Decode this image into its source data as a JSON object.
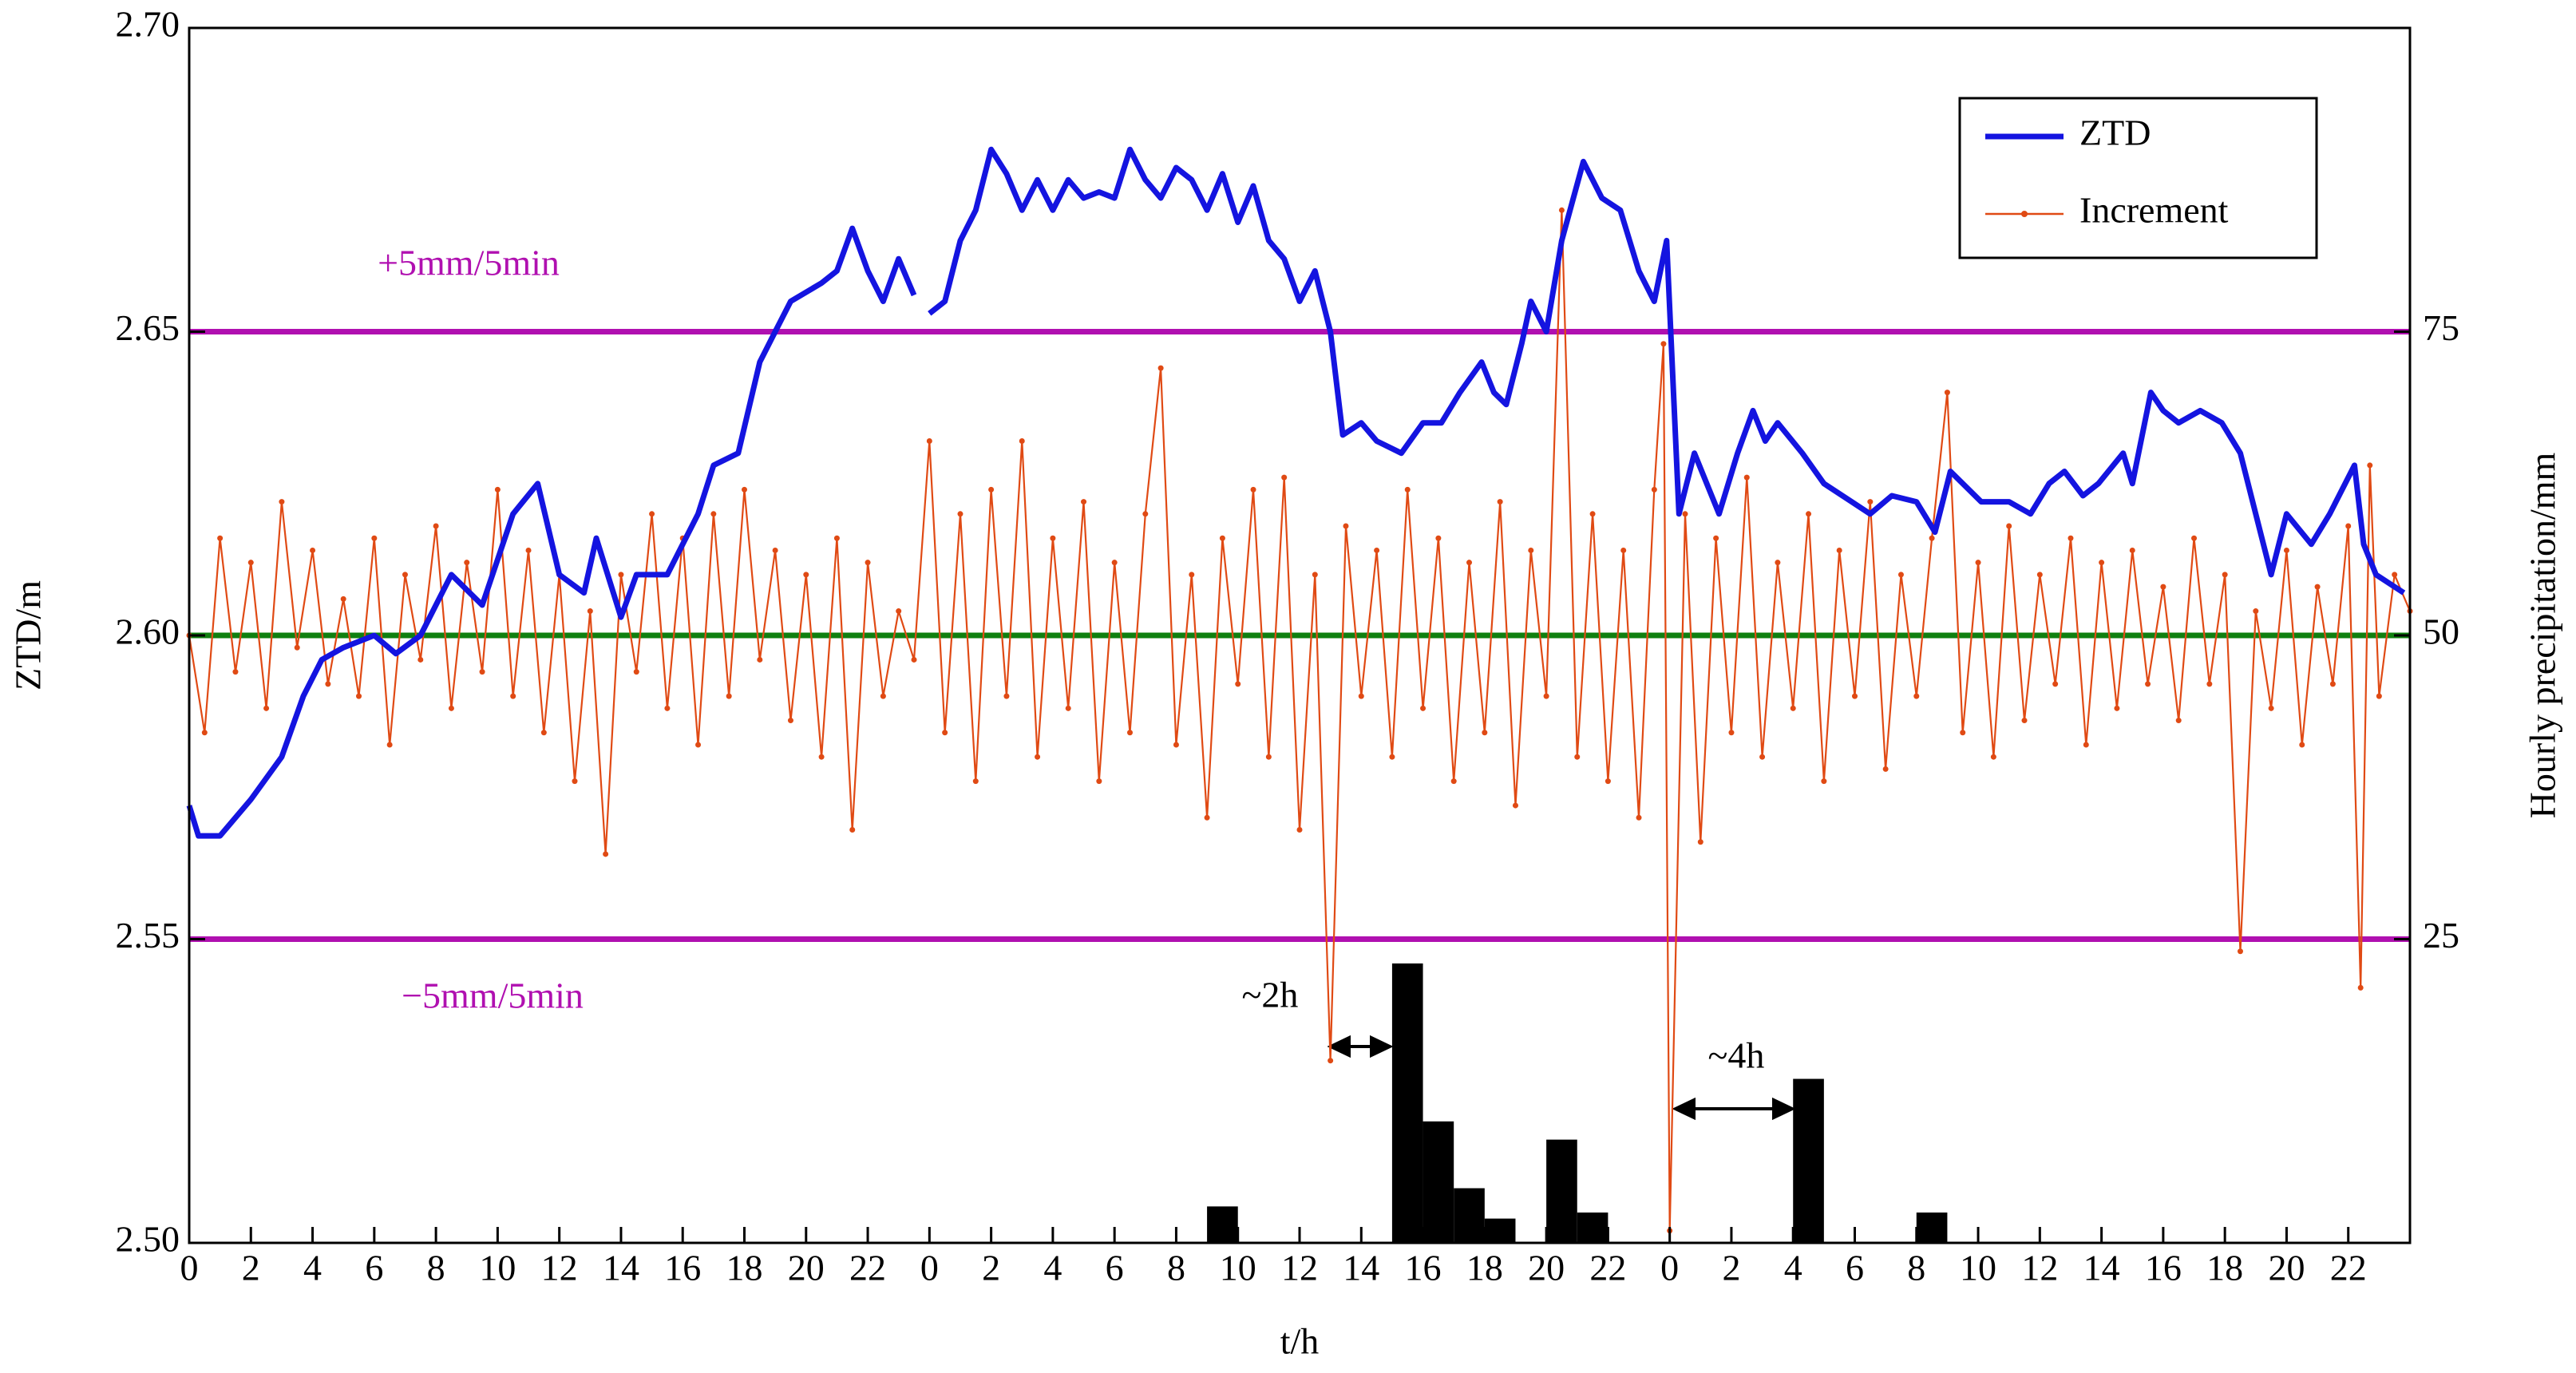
{
  "chart_data": {
    "type": "line",
    "ylabel": "ZTD/m",
    "y2label": "Hourly precipitation/mm",
    "xlabel": "t/h",
    "xlim": [
      0,
      72
    ],
    "ylim": [
      2.5,
      2.7
    ],
    "y2lim": [
      0,
      100
    ],
    "xticks": [
      0,
      2,
      4,
      6,
      8,
      10,
      12,
      14,
      16,
      18,
      20,
      22,
      {
        "value": 24,
        "label": "0"
      },
      {
        "value": 26,
        "label": "2"
      },
      {
        "value": 28,
        "label": "4"
      },
      {
        "value": 30,
        "label": "6"
      },
      {
        "value": 32,
        "label": "8"
      },
      {
        "value": 34,
        "label": "10"
      },
      {
        "value": 36,
        "label": "12"
      },
      {
        "value": 38,
        "label": "14"
      },
      {
        "value": 40,
        "label": "16"
      },
      {
        "value": 42,
        "label": "18"
      },
      {
        "value": 44,
        "label": "20"
      },
      {
        "value": 46,
        "label": "22"
      },
      {
        "value": 48,
        "label": "0"
      },
      {
        "value": 50,
        "label": "2"
      },
      {
        "value": 52,
        "label": "4"
      },
      {
        "value": 54,
        "label": "6"
      },
      {
        "value": 56,
        "label": "8"
      },
      {
        "value": 58,
        "label": "10"
      },
      {
        "value": 60,
        "label": "12"
      },
      {
        "value": 62,
        "label": "14"
      },
      {
        "value": 64,
        "label": "16"
      },
      {
        "value": 66,
        "label": "18"
      },
      {
        "value": 68,
        "label": "20"
      },
      {
        "value": 70,
        "label": "22"
      }
    ],
    "yticks": [
      {
        "value": 2.5,
        "label": "2.50"
      },
      2.55,
      {
        "value": 2.6,
        "label": "2.60"
      },
      2.65,
      {
        "value": 2.7,
        "label": "2.70"
      }
    ],
    "y2ticks": [
      25,
      50,
      75
    ],
    "legend": "upper right",
    "hlines": [
      {
        "value": 75,
        "color": "#b010b0",
        "axis": "y2"
      },
      {
        "value": 50,
        "color": "#108010",
        "axis": "y2"
      },
      {
        "value": 25,
        "color": "#b010b0",
        "axis": "y2"
      }
    ],
    "annotations": [
      {
        "text": "+5mm/5min",
        "color": "#b010b0"
      },
      {
        "text": "−5mm/5min",
        "color": "#b010b0"
      },
      {
        "text": "~2h",
        "color": "#000000"
      },
      {
        "text": "~4h",
        "color": "#000000"
      }
    ],
    "precipitation": {
      "color": "#000000",
      "axis": "y2",
      "x": [
        33,
        39,
        40,
        41,
        42,
        44,
        45,
        52,
        56
      ],
      "values": [
        3,
        23,
        10,
        4.5,
        2,
        8.5,
        2.5,
        13.5,
        2.5
      ]
    },
    "series": [
      {
        "name": "ZTD",
        "color": "#1414e0",
        "x": [
          0,
          0.3,
          1,
          2,
          3,
          3.7,
          4.3,
          5,
          6,
          6.7,
          7.5,
          8.5,
          9.5,
          10.5,
          11.3,
          12,
          12.8,
          13.2,
          14,
          14.5,
          15.5,
          16.5,
          17,
          17.8,
          18.5,
          19,
          19.5,
          20.5,
          21,
          21.5,
          22,
          22.5,
          23,
          23.5,
          23.9,
          24,
          24.5,
          25,
          25.5,
          26,
          26.5,
          27,
          27.5,
          28,
          28.5,
          29,
          29.5,
          30,
          30.5,
          31,
          31.5,
          32,
          32.5,
          33,
          33.5,
          34,
          34.5,
          35,
          35.5,
          36,
          36.5,
          37,
          37.4,
          38,
          38.5,
          39.3,
          40,
          40.6,
          41.2,
          41.9,
          42.3,
          42.7,
          43.2,
          43.5,
          44,
          44.5,
          45.2,
          45.8,
          46.4,
          47,
          47.5,
          47.9,
          48.3,
          48.8,
          49.6,
          50.2,
          50.7,
          51.1,
          51.5,
          52.3,
          53,
          53.9,
          54.5,
          55.2,
          56,
          56.6,
          57.1,
          58.1,
          59,
          59.7,
          60.3,
          60.8,
          61.4,
          61.9,
          62.7,
          63,
          63.6,
          64,
          64.5,
          65.2,
          65.9,
          66.5,
          67,
          67.5,
          68,
          68.8,
          69.4,
          70.2,
          70.5,
          70.9,
          71.8
        ],
        "values": [
          2.572,
          2.567,
          2.567,
          2.573,
          2.58,
          2.59,
          2.596,
          2.598,
          2.6,
          2.597,
          2.6,
          2.61,
          2.605,
          2.62,
          2.625,
          2.61,
          2.607,
          2.616,
          2.603,
          2.61,
          2.61,
          2.62,
          2.628,
          2.63,
          2.645,
          2.65,
          2.655,
          2.658,
          2.66,
          2.667,
          2.66,
          2.655,
          2.662,
          2.656,
          null,
          2.653,
          2.655,
          2.665,
          2.67,
          2.68,
          2.676,
          2.67,
          2.675,
          2.67,
          2.675,
          2.672,
          2.673,
          2.672,
          2.68,
          2.675,
          2.672,
          2.677,
          2.675,
          2.67,
          2.676,
          2.668,
          2.674,
          2.665,
          2.662,
          2.655,
          2.66,
          2.65,
          2.633,
          2.635,
          2.632,
          2.63,
          2.635,
          2.635,
          2.64,
          2.645,
          2.64,
          2.638,
          2.648,
          2.655,
          2.65,
          2.665,
          2.678,
          2.672,
          2.67,
          2.66,
          2.655,
          2.665,
          2.62,
          2.63,
          2.62,
          2.63,
          2.637,
          2.632,
          2.635,
          2.63,
          2.625,
          2.622,
          2.62,
          2.623,
          2.622,
          2.617,
          2.627,
          2.622,
          2.622,
          2.62,
          2.625,
          2.627,
          2.623,
          2.625,
          2.63,
          2.625,
          2.64,
          2.637,
          2.635,
          2.637,
          2.635,
          2.63,
          2.62,
          2.61,
          2.62,
          2.615,
          2.62,
          2.628,
          2.615,
          2.61,
          2.607
        ]
      },
      {
        "name": "Increment",
        "color": "#e04a14",
        "axis": "y2",
        "x": [
          0,
          0.5,
          1,
          1.5,
          2,
          2.5,
          3,
          3.5,
          4,
          4.5,
          5,
          5.5,
          6,
          6.5,
          7,
          7.5,
          8,
          8.5,
          9,
          9.5,
          10,
          10.5,
          11,
          11.5,
          12,
          12.5,
          13,
          13.5,
          14,
          14.5,
          15,
          15.5,
          16,
          16.5,
          17,
          17.5,
          18,
          18.5,
          19,
          19.5,
          20,
          20.5,
          21,
          21.5,
          22,
          22.5,
          23,
          23.5,
          24,
          24.5,
          25,
          25.5,
          26,
          26.5,
          27,
          27.5,
          28,
          28.5,
          29,
          29.5,
          30,
          30.5,
          31,
          31.5,
          32,
          32.5,
          33,
          33.5,
          34,
          34.5,
          35,
          35.5,
          36,
          36.5,
          37,
          37.5,
          38,
          38.5,
          39,
          39.5,
          40,
          40.5,
          41,
          41.5,
          42,
          42.5,
          43,
          43.5,
          44,
          44.5,
          45,
          45.5,
          46,
          46.5,
          47,
          47.5,
          47.8,
          48,
          48.5,
          49,
          49.5,
          50,
          50.5,
          51,
          51.5,
          52,
          52.5,
          53,
          53.5,
          54,
          54.5,
          55,
          55.5,
          56,
          56.5,
          57,
          57.5,
          58,
          58.5,
          59,
          59.5,
          60,
          60.5,
          61,
          61.5,
          62,
          62.5,
          63,
          63.5,
          64,
          64.5,
          65,
          65.5,
          66,
          66.5,
          67,
          67.5,
          68,
          68.5,
          69,
          69.5,
          70,
          70.4,
          70.7,
          71,
          71.5,
          72
        ],
        "values": [
          50,
          42,
          58,
          47,
          56,
          44,
          61,
          49,
          57,
          46,
          53,
          45,
          58,
          41,
          55,
          48,
          59,
          44,
          56,
          47,
          62,
          45,
          57,
          42,
          55,
          38,
          52,
          32,
          55,
          47,
          60,
          44,
          58,
          41,
          60,
          45,
          62,
          48,
          57,
          43,
          55,
          40,
          58,
          34,
          56,
          45,
          52,
          48,
          66,
          42,
          60,
          38,
          62,
          45,
          66,
          40,
          58,
          44,
          61,
          38,
          56,
          42,
          60,
          72,
          41,
          55,
          35,
          58,
          46,
          62,
          40,
          63,
          34,
          55,
          15,
          59,
          45,
          57,
          40,
          62,
          44,
          58,
          38,
          56,
          42,
          61,
          36,
          57,
          45,
          85,
          40,
          60,
          38,
          57,
          35,
          62,
          74,
          1,
          60,
          33,
          58,
          42,
          63,
          40,
          56,
          44,
          60,
          38,
          57,
          45,
          61,
          39,
          55,
          45,
          58,
          70,
          42,
          56,
          40,
          59,
          43,
          55,
          46,
          58,
          41,
          56,
          44,
          57,
          46,
          54,
          43,
          58,
          46,
          55,
          24,
          52,
          44,
          57,
          41,
          54,
          46,
          59,
          21,
          64,
          45,
          55,
          52
        ]
      }
    ]
  }
}
